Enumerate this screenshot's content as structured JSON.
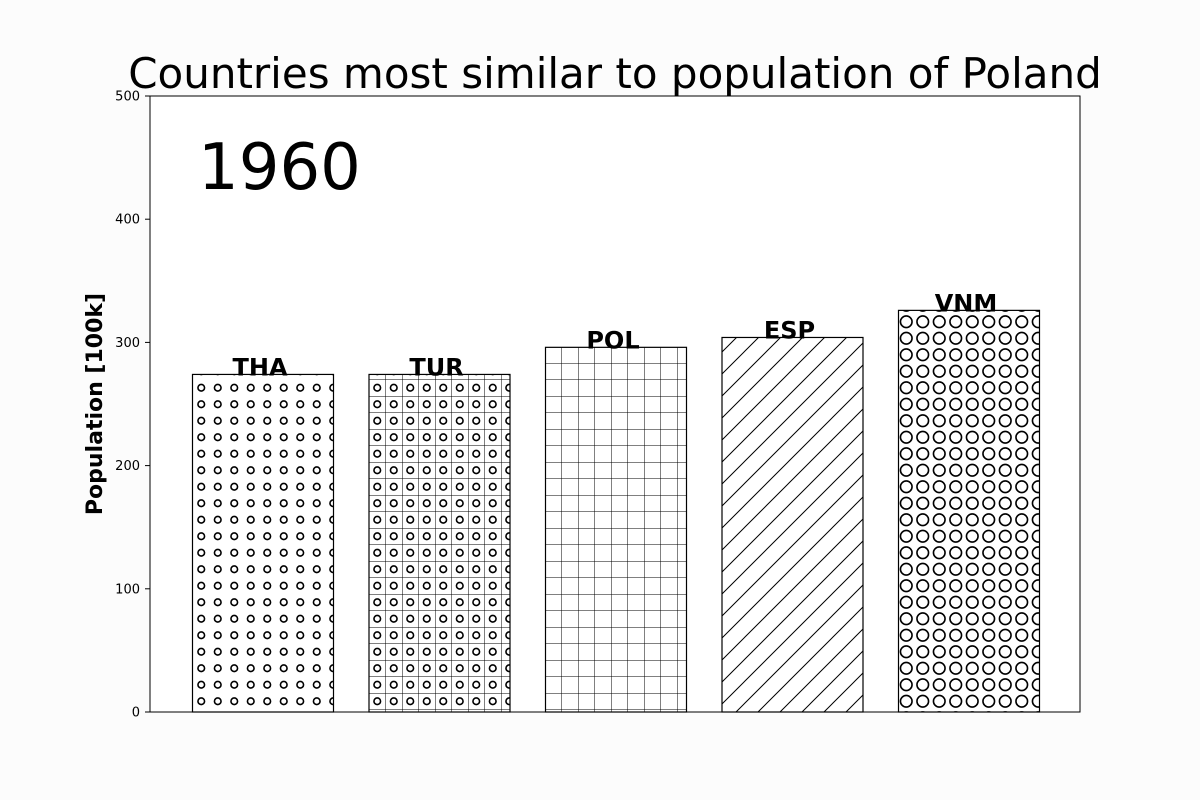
{
  "chart_data": {
    "type": "bar",
    "title": "Countries most similar to population of Poland",
    "annotation": "1960",
    "xlabel": "",
    "ylabel": "Population [100k]",
    "ylim": [
      0,
      500
    ],
    "yticks": [
      "0",
      "100",
      "200",
      "300",
      "400",
      "500"
    ],
    "grid": false,
    "categories": [
      "THA",
      "TUR",
      "POL",
      "ESP",
      "VNM"
    ],
    "values": [
      274,
      274,
      296,
      304,
      326
    ],
    "hatches": [
      "small-circles",
      "small-circles-grid",
      "grid",
      "diagonal",
      "large-circles"
    ],
    "colors": {
      "bar_fill": "#ffffff",
      "edge": "#000000",
      "background": "#fcfcfc"
    }
  }
}
